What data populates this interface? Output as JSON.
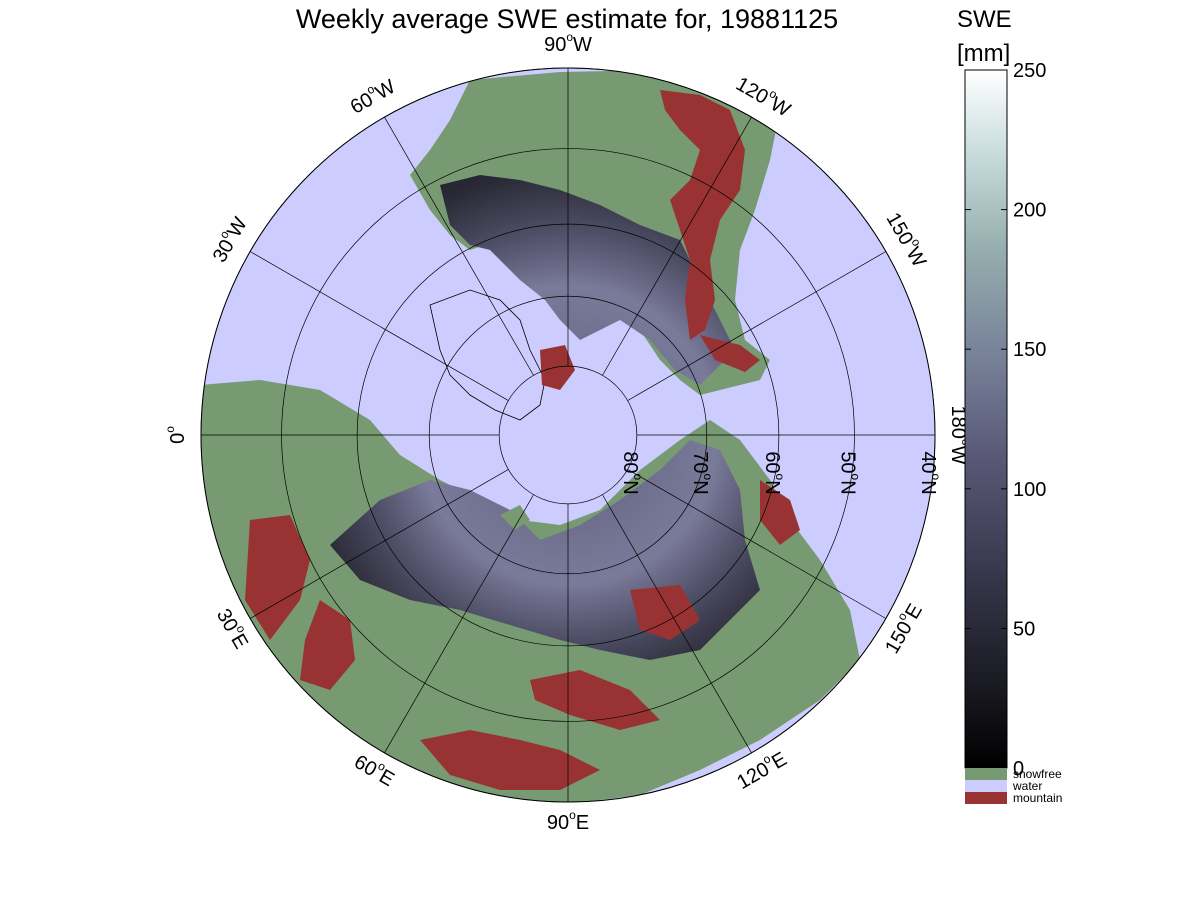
{
  "title": "Weekly average SWE estimate for, 19881125",
  "colorbar": {
    "label_line1": "SWE",
    "label_line2": "[mm]",
    "ticks": [
      "0",
      "50",
      "100",
      "150",
      "200",
      "250"
    ],
    "tick_values": [
      0,
      50,
      100,
      150,
      200,
      250
    ],
    "range": [
      0,
      250
    ],
    "categories": [
      {
        "label": "snowfree",
        "color": "#779a72"
      },
      {
        "label": "water",
        "color": "#ccccff"
      },
      {
        "label": "mountain",
        "color": "#993333"
      }
    ]
  },
  "map": {
    "projection": "north polar stereographic",
    "longitude_labels": [
      {
        "deg": 90,
        "base": "90",
        "sup": "o",
        "suffix": "W"
      },
      {
        "deg": 120,
        "base": "120",
        "sup": "o",
        "suffix": "W"
      },
      {
        "deg": 150,
        "base": "150",
        "sup": "o",
        "suffix": "W"
      },
      {
        "deg": 180,
        "base": "180",
        "sup": "o",
        "suffix": "W"
      },
      {
        "deg": 210,
        "base": "150",
        "sup": "o",
        "suffix": "E"
      },
      {
        "deg": 240,
        "base": "120",
        "sup": "o",
        "suffix": "E"
      },
      {
        "deg": 270,
        "base": "90",
        "sup": "o",
        "suffix": "E"
      },
      {
        "deg": 300,
        "base": "60",
        "sup": "o",
        "suffix": "E"
      },
      {
        "deg": 330,
        "base": "30",
        "sup": "o",
        "suffix": "E"
      },
      {
        "deg": 0,
        "base": "0",
        "sup": "o",
        "suffix": ""
      },
      {
        "deg": 30,
        "base": "30",
        "sup": "o",
        "suffix": "W"
      },
      {
        "deg": 60,
        "base": "60",
        "sup": "o",
        "suffix": "W"
      }
    ],
    "latitude_labels": [
      {
        "lat": 80,
        "base": "80",
        "sup": "o",
        "suffix": "N"
      },
      {
        "lat": 70,
        "base": "70",
        "sup": "o",
        "suffix": "N"
      },
      {
        "lat": 60,
        "base": "60",
        "sup": "o",
        "suffix": "N"
      },
      {
        "lat": 50,
        "base": "50",
        "sup": "o",
        "suffix": "N"
      },
      {
        "lat": 40,
        "base": "40",
        "sup": "o",
        "suffix": "N"
      }
    ],
    "latitude_circles": [
      80,
      70,
      60,
      50,
      40
    ],
    "meridian_step_deg": 30,
    "colors": {
      "water": "#ccccff",
      "snowfree": "#779a72",
      "mountain": "#993333",
      "snow_low": "#1a1a22",
      "snow_mid": "#55557a",
      "snow_high": "#7a7a9a",
      "grid": "#000000"
    }
  }
}
